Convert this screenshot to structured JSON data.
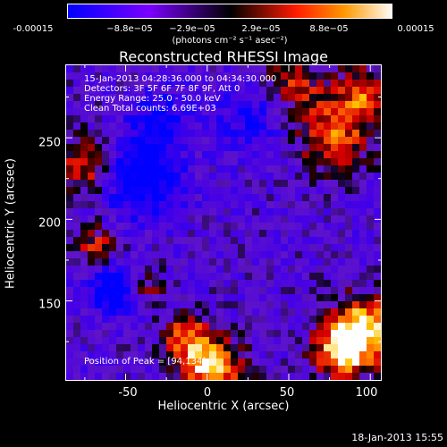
{
  "colorbar": {
    "labels": [
      "-0.00015",
      "−8.8e−05",
      "−2.9e−05",
      "2.9e−05",
      "8.8e−05",
      "0.00015"
    ],
    "units": "(photons cm⁻² s⁻¹ asec⁻²)"
  },
  "title": "Reconstructed RHESSI Image",
  "info": {
    "time_range": "15-Jan-2013 04:28:36.000 to 04:34:30.000",
    "detectors": "Detectors: 3F 5F 6F 7F 8F 9F, Att 0",
    "energy": "Energy Range: 25.0 - 50.0 keV",
    "clean": "Clean     Total counts: 6.69E+03",
    "peak": "Position of Peak = [94,134]"
  },
  "axes": {
    "xlabel": "Heliocentric X (arcsec)",
    "ylabel": "Heliocentric Y (arcsec)",
    "xticks": [
      "-50",
      "0",
      "50",
      "100"
    ],
    "yticks": [
      "250",
      "200",
      "150"
    ]
  },
  "timestamp": "18-Jan-2013 15:55",
  "chart_data": {
    "type": "heatmap",
    "title": "Reconstructed RHESSI Image",
    "xlabel": "Heliocentric X (arcsec)",
    "ylabel": "Heliocentric Y (arcsec)",
    "xlim": [
      -87,
      107
    ],
    "ylim": [
      101,
      295
    ],
    "xticks": [
      -50,
      0,
      50,
      100
    ],
    "yticks": [
      150,
      200,
      250
    ],
    "color_range": [
      -0.00015,
      0.00015
    ],
    "peak_position": [
      94,
      134
    ],
    "colormap_stops": [
      "#0000ff",
      "#6a00ff",
      "#000000",
      "#ff1a00",
      "#ff9900",
      "#ffffff"
    ]
  }
}
